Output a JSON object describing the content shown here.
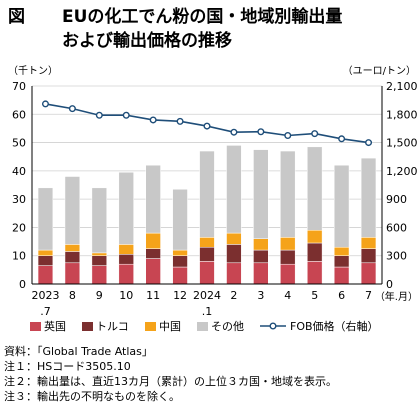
{
  "title": {
    "figure_label": "図",
    "line1": "EUの化工でん粉の国・地域別輸出量",
    "line2": "および輸出価格の推移"
  },
  "chart_data": {
    "type": "bar",
    "stacked": true,
    "left_unit": "（千トン）",
    "right_unit": "（ユーロ/トン）",
    "x_unit": "（年.月）",
    "categories": [
      "2023\n.7",
      "8",
      "9",
      "10",
      "11",
      "12",
      "2024\n.1",
      "2",
      "3",
      "4",
      "5",
      "6",
      "7"
    ],
    "ylim": [
      0,
      70
    ],
    "y_ticks": [
      0,
      10,
      20,
      30,
      40,
      50,
      60,
      70
    ],
    "y2lim": [
      0,
      2100
    ],
    "y2_ticks": [
      "0",
      "300",
      "600",
      "900",
      "1,200",
      "1,500",
      "1,800",
      "2,100"
    ],
    "grid": true,
    "legend_position": "bottom",
    "series": [
      {
        "name": "英国",
        "color": "#c84552",
        "values": [
          6.5,
          7.5,
          6.5,
          7.0,
          9.0,
          6.0,
          8.0,
          7.5,
          7.5,
          7.0,
          8.0,
          6.0,
          7.5
        ]
      },
      {
        "name": "トルコ",
        "color": "#7b2f2f",
        "values": [
          3.5,
          4.0,
          3.5,
          3.5,
          3.5,
          4.0,
          5.0,
          6.5,
          4.5,
          5.0,
          6.5,
          4.0,
          5.0
        ]
      },
      {
        "name": "中国",
        "color": "#f5a31a",
        "values": [
          2.0,
          2.5,
          1.0,
          3.5,
          5.5,
          2.0,
          3.5,
          4.0,
          4.0,
          4.5,
          4.5,
          3.0,
          4.0
        ]
      },
      {
        "name": "その他",
        "color": "#c8c8c8",
        "values": [
          22.0,
          24.0,
          23.0,
          25.5,
          24.0,
          21.5,
          30.5,
          31.0,
          31.5,
          30.5,
          29.5,
          29.0,
          28.0
        ]
      }
    ],
    "line_series": {
      "name": "FOB価格（右軸）",
      "color": "#1f4e79",
      "axis": "right",
      "values": [
        1910,
        1860,
        1790,
        1790,
        1740,
        1725,
        1675,
        1610,
        1615,
        1575,
        1595,
        1540,
        1500
      ]
    }
  },
  "notes": [
    "資料：「Global Trade Atlas」",
    "注１：HSコード3505.10",
    "注２：輸出量は、直近13カ月（累計）の上位３カ国・地域を表示。",
    "注３：輸出先の不明なものを除く。"
  ]
}
